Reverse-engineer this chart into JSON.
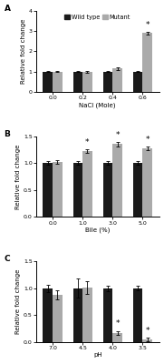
{
  "panel_A": {
    "label": "A",
    "xlabel": "NaCl (Mole)",
    "ylabel": "Relative fold change",
    "categories": [
      "0.0",
      "0.2",
      "0.4",
      "0.6"
    ],
    "wild_type": [
      1.0,
      1.0,
      1.0,
      1.0
    ],
    "mutant": [
      1.0,
      0.97,
      1.15,
      2.9
    ],
    "wt_err": [
      0.04,
      0.04,
      0.04,
      0.04
    ],
    "mut_err": [
      0.04,
      0.04,
      0.07,
      0.05
    ],
    "ylim": [
      0,
      4.0
    ],
    "yticks": [
      0,
      1,
      2,
      3,
      4
    ],
    "star_mutant": [
      false,
      false,
      false,
      true
    ]
  },
  "panel_B": {
    "label": "B",
    "xlabel": "Bile (%)",
    "ylabel": "Relative fold change",
    "categories": [
      "0.0",
      "1.0",
      "3.0",
      "5.0"
    ],
    "wild_type": [
      1.0,
      1.0,
      1.0,
      1.0
    ],
    "mutant": [
      1.02,
      1.22,
      1.35,
      1.27
    ],
    "wt_err": [
      0.03,
      0.03,
      0.03,
      0.03
    ],
    "mut_err": [
      0.03,
      0.03,
      0.04,
      0.03
    ],
    "ylim": [
      0,
      1.5
    ],
    "yticks": [
      0.0,
      0.5,
      1.0,
      1.5
    ],
    "star_mutant": [
      false,
      true,
      true,
      true
    ]
  },
  "panel_C": {
    "label": "C",
    "xlabel": "pH",
    "ylabel": "Relative fold change",
    "categories": [
      "7.0",
      "4.5",
      "4.0",
      "3.5"
    ],
    "wild_type": [
      1.0,
      1.0,
      1.0,
      1.0
    ],
    "mutant": [
      0.88,
      1.02,
      0.17,
      0.05
    ],
    "wt_err": [
      0.07,
      0.18,
      0.05,
      0.04
    ],
    "mut_err": [
      0.08,
      0.12,
      0.04,
      0.03
    ],
    "ylim": [
      0,
      1.5
    ],
    "yticks": [
      0.0,
      0.5,
      1.0,
      1.5
    ],
    "star_mutant": [
      false,
      false,
      true,
      true
    ]
  },
  "wt_color": "#1a1a1a",
  "mut_color": "#aaaaaa",
  "bar_width": 0.32,
  "legend_labels": [
    "Wild type",
    "Mutant"
  ],
  "background_color": "#ffffff",
  "fontsize_label": 5.0,
  "fontsize_tick": 4.5,
  "fontsize_star": 6.5,
  "fontsize_legend": 4.8,
  "fontsize_panel": 6.5
}
